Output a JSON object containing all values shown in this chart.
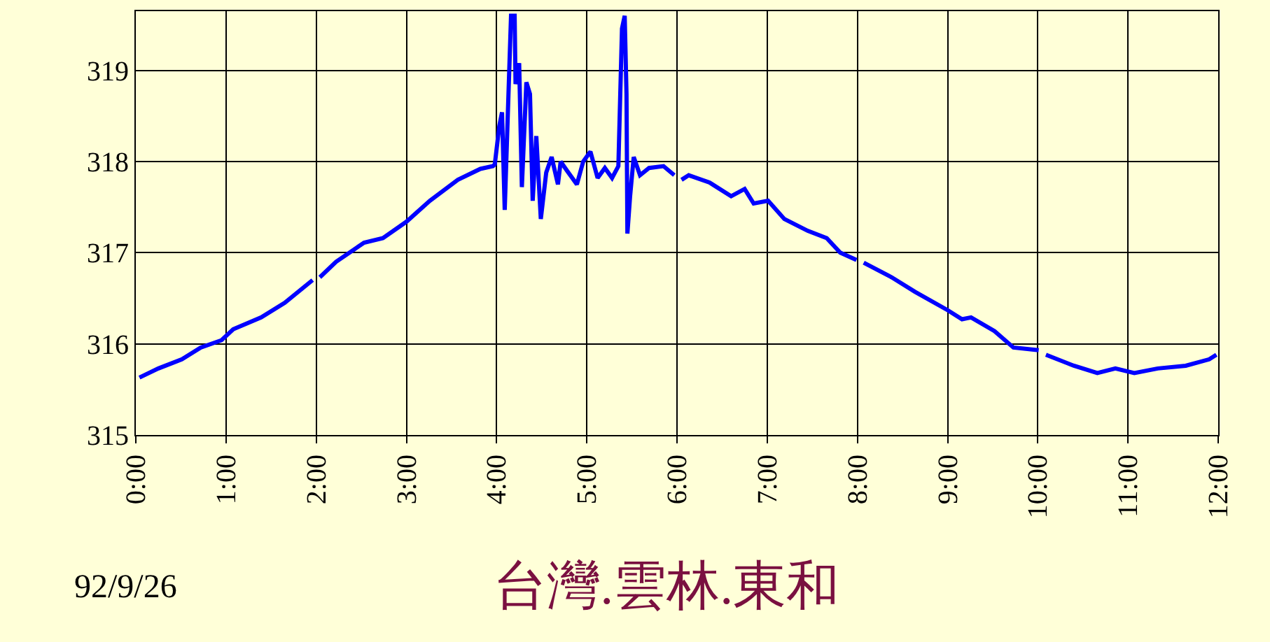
{
  "chart_data": {
    "type": "line",
    "title": "台灣.雲林.東和",
    "annotations": [
      "92/9/26"
    ],
    "x": [
      0.04,
      0.25,
      0.51,
      0.72,
      0.95,
      1.08,
      1.39,
      1.65,
      1.96,
      2.0,
      2.04,
      2.22,
      2.53,
      2.74,
      3.0,
      3.26,
      3.57,
      3.82,
      3.96,
      3.98,
      4.03,
      4.06,
      4.09,
      4.14,
      4.16,
      4.2,
      4.21,
      4.25,
      4.28,
      4.33,
      4.37,
      4.4,
      4.44,
      4.49,
      4.55,
      4.61,
      4.68,
      4.71,
      4.78,
      4.89,
      4.96,
      5.04,
      5.12,
      5.2,
      5.28,
      5.35,
      5.39,
      5.42,
      5.44,
      5.45,
      5.48,
      5.52,
      5.59,
      5.69,
      5.85,
      5.97,
      6.01,
      6.05,
      6.13,
      6.36,
      6.6,
      6.75,
      6.85,
      7.01,
      7.19,
      7.45,
      7.66,
      7.81,
      7.99,
      8.03,
      8.07,
      8.38,
      8.64,
      9.0,
      9.16,
      9.26,
      9.52,
      9.73,
      10.01,
      10.05,
      10.09,
      10.4,
      10.66,
      10.86,
      11.07,
      11.33,
      11.64,
      11.9,
      11.98
    ],
    "series": [
      {
        "color": "#0000ff",
        "values": [
          315.63,
          315.73,
          315.83,
          315.96,
          316.04,
          316.16,
          316.29,
          316.45,
          316.7,
          null,
          316.73,
          316.9,
          317.11,
          317.16,
          317.34,
          317.57,
          317.8,
          317.92,
          317.95,
          317.97,
          318.39,
          318.54,
          317.47,
          319.0,
          319.6,
          319.6,
          318.85,
          319.08,
          317.72,
          318.87,
          318.74,
          317.57,
          318.28,
          317.37,
          317.88,
          318.05,
          317.75,
          318.0,
          317.9,
          317.75,
          318.0,
          318.11,
          317.82,
          317.93,
          317.82,
          317.95,
          319.46,
          319.6,
          318.74,
          317.21,
          317.62,
          318.05,
          317.85,
          317.93,
          317.95,
          317.85,
          null,
          317.8,
          317.85,
          317.77,
          317.62,
          317.7,
          317.54,
          317.57,
          317.37,
          317.24,
          317.16,
          317.0,
          316.92,
          null,
          316.89,
          316.73,
          316.57,
          316.37,
          316.27,
          316.29,
          316.14,
          315.96,
          315.93,
          null,
          315.88,
          315.76,
          315.68,
          315.73,
          315.68,
          315.73,
          315.76,
          315.83,
          315.88
        ]
      }
    ],
    "xlim": [
      0,
      12
    ],
    "xticks": [
      {
        "value": 0,
        "label": "0:00"
      },
      {
        "value": 1,
        "label": "1:00"
      },
      {
        "value": 2,
        "label": "2:00"
      },
      {
        "value": 3,
        "label": "3:00"
      },
      {
        "value": 4,
        "label": "4:00"
      },
      {
        "value": 5,
        "label": "5:00"
      },
      {
        "value": 6,
        "label": "6:00"
      },
      {
        "value": 7,
        "label": "7:00"
      },
      {
        "value": 8,
        "label": "8:00"
      },
      {
        "value": 9,
        "label": "9:00"
      },
      {
        "value": 10,
        "label": "10:00"
      },
      {
        "value": 11,
        "label": "11:00"
      },
      {
        "value": 12,
        "label": "12:00"
      }
    ],
    "ylim": [
      315,
      319.65
    ],
    "yticks": [
      315,
      316,
      317,
      318,
      319
    ],
    "grid": true,
    "legend": false,
    "marker": "none",
    "line_style": "solid"
  }
}
